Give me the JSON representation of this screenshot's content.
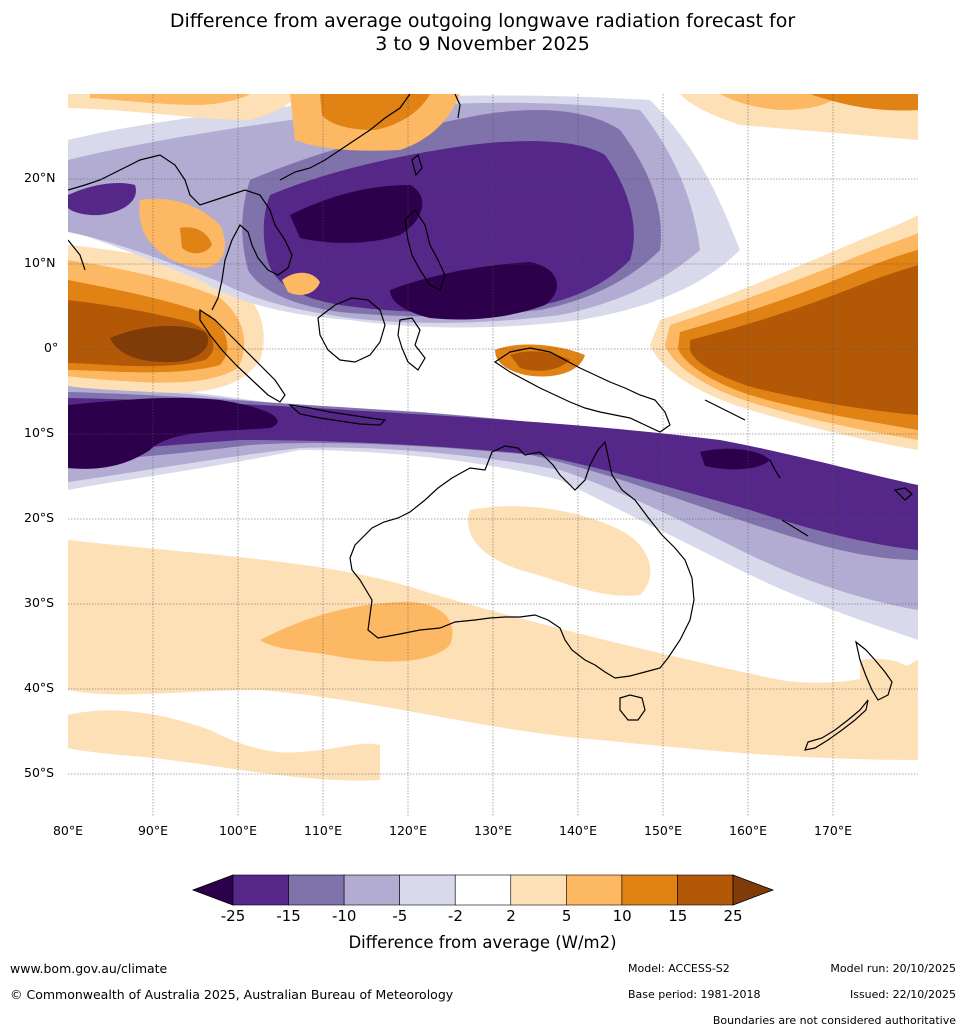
{
  "title_line1": "Difference from average outgoing longwave radiation forecast for",
  "title_line2": "3 to 9 November 2025",
  "lat_labels": [
    "20°N",
    "10°N",
    "0°",
    "10°S",
    "20°S",
    "30°S",
    "40°S",
    "50°S"
  ],
  "lon_labels": [
    "80°E",
    "90°E",
    "100°E",
    "110°E",
    "120°E",
    "130°E",
    "140°E",
    "150°E",
    "160°E",
    "170°E"
  ],
  "colorbar": {
    "ticks": [
      "-25",
      "-15",
      "-10",
      "-5",
      "-2",
      "2",
      "5",
      "10",
      "15",
      "25"
    ],
    "colors": [
      "#2d004b",
      "#542788",
      "#8073ac",
      "#b2abd2",
      "#d8daeb",
      "#ffffff",
      "#fee0b6",
      "#fdb863",
      "#e08214",
      "#b35806",
      "#7f3b08"
    ],
    "label": "Difference from average (W/m2)"
  },
  "footer": {
    "website": "www.bom.gov.au/climate",
    "copyright": "© Commonwealth of Australia 2025, Australian Bureau of Meteorology",
    "model": "Model: ACCESS-S2",
    "base_period": "Base period: 1981-2018",
    "model_run": "Model run: 20/10/2025",
    "issued": "Issued: 22/10/2025",
    "disclaimer": "Boundaries are not considered authoritative"
  }
}
